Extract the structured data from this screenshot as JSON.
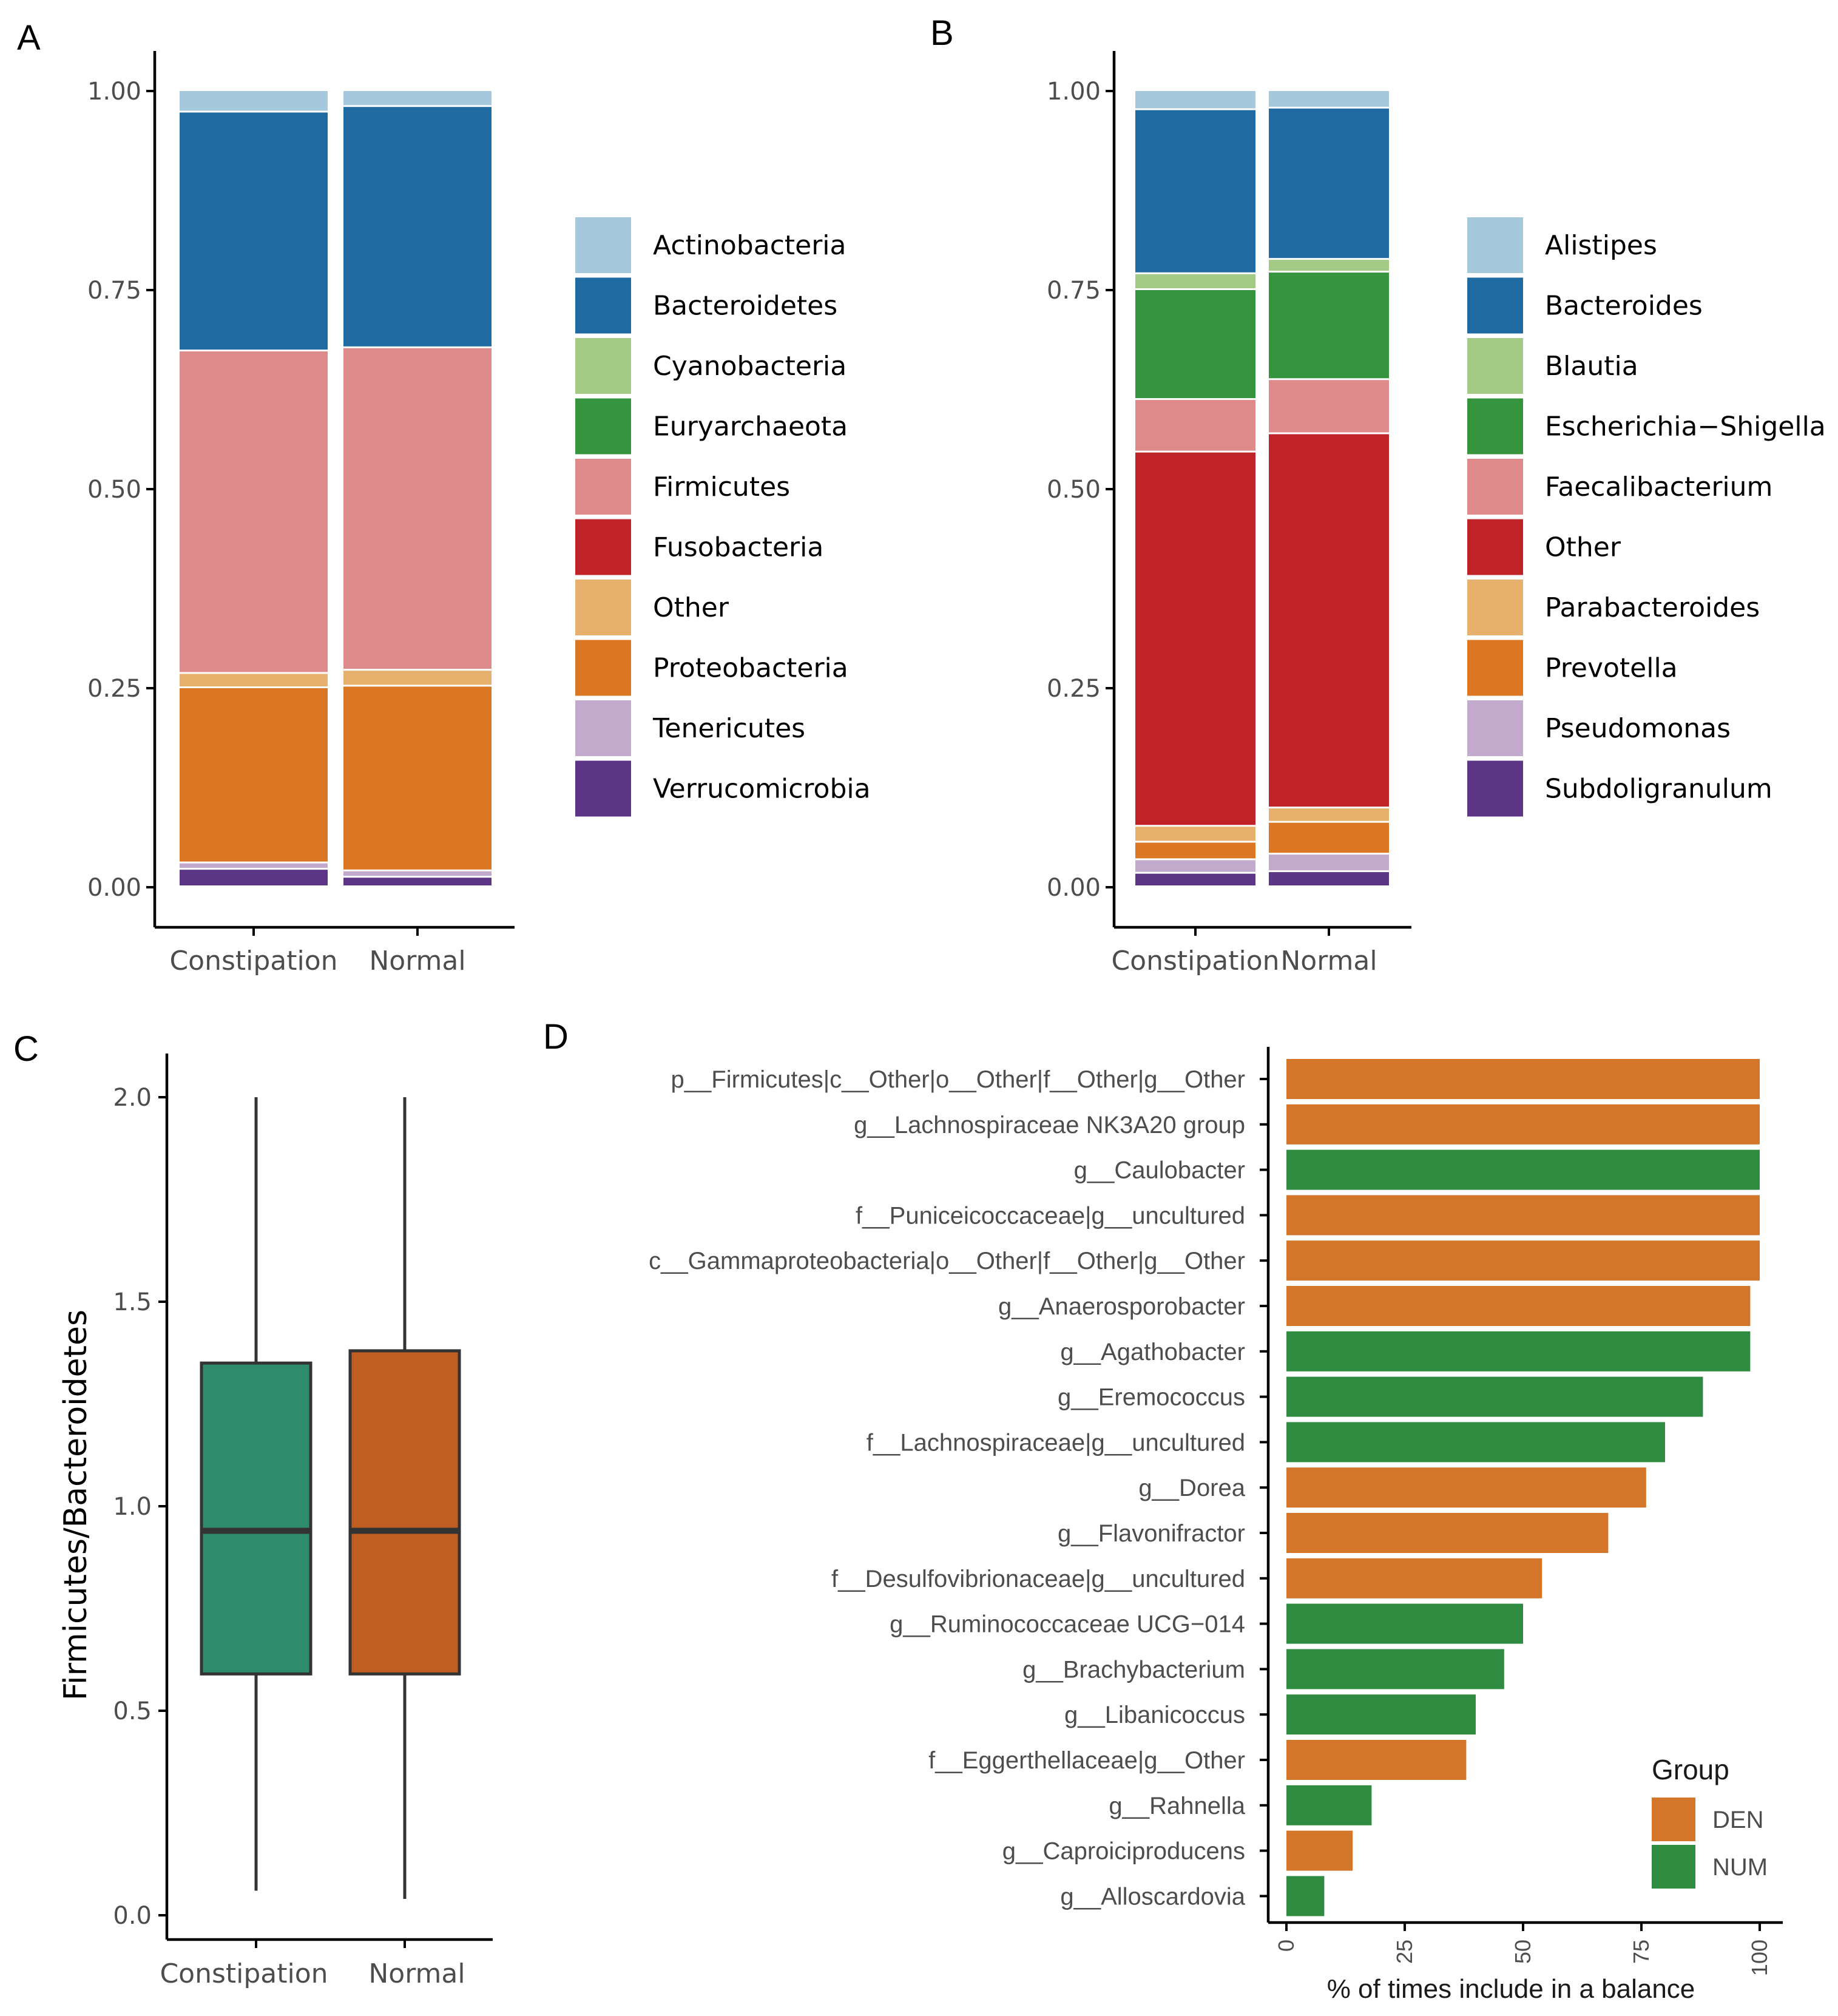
{
  "colors": {
    "Actinobacteria": "#a6c8dc",
    "Bacteroidetes": "#1f6aa0",
    "Cyanobacteria": "#a3cb86",
    "Euryarchaeota": "#36943f",
    "Firmicutes": "#df8a8a",
    "Fusobacteria": "#bf2327",
    "Other": "#e8b06d",
    "Proteobacteria": "#db7623",
    "Tenericutes": "#c2aacc",
    "Verrucomicrobia": "#5c3587",
    "Alistipes": "#a6c8dc",
    "Bacteroides": "#1f6aa0",
    "Blautia": "#a3cb86",
    "Escherichia-Shigella": "#36943f",
    "Faecalibacterium": "#df8a8a",
    "OtherB": "#bf2327",
    "Parabacteroides": "#e8b06d",
    "Prevotella": "#db7623",
    "Pseudomonas": "#c2aacc",
    "Subdoligranulum": "#5c3587",
    "box_constipation": "#2e8b6b",
    "box_normal": "#c05e22",
    "DEN": "#d4762a",
    "NUM": "#2f8b3f"
  },
  "chart_data": [
    {
      "panel": "A",
      "type": "bar",
      "stacked": true,
      "categories": [
        "Constipation",
        "Normal"
      ],
      "ylim": [
        0,
        1
      ],
      "yticks": [
        "0.00",
        "0.25",
        "0.50",
        "0.75",
        "1.00"
      ],
      "xlabel": "",
      "ylabel": "",
      "legend_position": "right",
      "series": [
        {
          "name": "Verrucomicrobia",
          "key": "Verrucomicrobia",
          "values": [
            0.022,
            0.012
          ]
        },
        {
          "name": "Tenericutes",
          "key": "Tenericutes",
          "values": [
            0.008,
            0.008
          ]
        },
        {
          "name": "Proteobacteria",
          "key": "Proteobacteria",
          "values": [
            0.22,
            0.232
          ]
        },
        {
          "name": "Other",
          "key": "Other",
          "values": [
            0.018,
            0.02
          ]
        },
        {
          "name": "Fusobacteria",
          "key": "Fusobacteria",
          "values": [
            0.0,
            0.0
          ]
        },
        {
          "name": "Firmicutes",
          "key": "Firmicutes",
          "values": [
            0.405,
            0.405
          ]
        },
        {
          "name": "Euryarchaeota",
          "key": "Euryarchaeota",
          "values": [
            0.0,
            0.0
          ]
        },
        {
          "name": "Cyanobacteria",
          "key": "Cyanobacteria",
          "values": [
            0.0,
            0.0
          ]
        },
        {
          "name": "Bacteroidetes",
          "key": "Bacteroidetes",
          "values": [
            0.3,
            0.303
          ]
        },
        {
          "name": "Actinobacteria",
          "key": "Actinobacteria",
          "values": [
            0.027,
            0.02
          ]
        }
      ],
      "legend": [
        "Actinobacteria",
        "Bacteroidetes",
        "Cyanobacteria",
        "Euryarchaeota",
        "Firmicutes",
        "Fusobacteria",
        "Other",
        "Proteobacteria",
        "Tenericutes",
        "Verrucomicrobia"
      ],
      "legend_keys": [
        "Actinobacteria",
        "Bacteroidetes",
        "Cyanobacteria",
        "Euryarchaeota",
        "Firmicutes",
        "Fusobacteria",
        "Other",
        "Proteobacteria",
        "Tenericutes",
        "Verrucomicrobia"
      ]
    },
    {
      "panel": "B",
      "type": "bar",
      "stacked": true,
      "categories": [
        "Constipation",
        "Normal"
      ],
      "ylim": [
        0,
        1
      ],
      "yticks": [
        "0.00",
        "0.25",
        "0.50",
        "0.75",
        "1.00"
      ],
      "xlabel": "",
      "ylabel": "",
      "legend_position": "right",
      "series": [
        {
          "name": "Subdoligranulum",
          "key": "Subdoligranulum",
          "values": [
            0.017,
            0.019
          ]
        },
        {
          "name": "Pseudomonas",
          "key": "Pseudomonas",
          "values": [
            0.017,
            0.022
          ]
        },
        {
          "name": "Prevotella",
          "key": "Prevotella",
          "values": [
            0.022,
            0.04
          ]
        },
        {
          "name": "Parabacteroides",
          "key": "Parabacteroides",
          "values": [
            0.02,
            0.018
          ]
        },
        {
          "name": "Other",
          "key": "OtherB",
          "values": [
            0.47,
            0.47
          ]
        },
        {
          "name": "Faecalibacterium",
          "key": "Faecalibacterium",
          "values": [
            0.066,
            0.068
          ]
        },
        {
          "name": "Escherichia-Shigella",
          "key": "Escherichia-Shigella",
          "values": [
            0.138,
            0.135
          ]
        },
        {
          "name": "Blautia",
          "key": "Blautia",
          "values": [
            0.02,
            0.016
          ]
        },
        {
          "name": "Bacteroides",
          "key": "Bacteroides",
          "values": [
            0.206,
            0.19
          ]
        },
        {
          "name": "Alistipes",
          "key": "Alistipes",
          "values": [
            0.024,
            0.022
          ]
        }
      ],
      "legend": [
        "Alistipes",
        "Bacteroides",
        "Blautia",
        "Escherichia−Shigella",
        "Faecalibacterium",
        "Other",
        "Parabacteroides",
        "Prevotella",
        "Pseudomonas",
        "Subdoligranulum"
      ],
      "legend_keys": [
        "Alistipes",
        "Bacteroides",
        "Blautia",
        "Escherichia-Shigella",
        "Faecalibacterium",
        "OtherB",
        "Parabacteroides",
        "Prevotella",
        "Pseudomonas",
        "Subdoligranulum"
      ]
    },
    {
      "panel": "C",
      "type": "box",
      "categories": [
        "Constipation",
        "Normal"
      ],
      "ylabel": "Firmicutes/Bacteroidetes",
      "xlabel": "",
      "ylim": [
        0,
        2.05
      ],
      "yticks": [
        "0.0",
        "0.5",
        "1.0",
        "1.5",
        "2.0"
      ],
      "boxes": [
        {
          "name": "Constipation",
          "min": 0.06,
          "q1": 0.59,
          "median": 0.94,
          "q3": 1.35,
          "max": 2.0
        },
        {
          "name": "Normal",
          "min": 0.04,
          "q1": 0.59,
          "median": 0.94,
          "q3": 1.38,
          "max": 2.0
        }
      ]
    },
    {
      "panel": "D",
      "type": "bar",
      "orientation": "horizontal",
      "xlabel": "% of times include in a balance",
      "xlim": [
        0,
        100
      ],
      "xticks": [
        "0",
        "25",
        "50",
        "75",
        "100"
      ],
      "legend_title": "Group",
      "legend": [
        "DEN",
        "NUM"
      ],
      "legend_position": "bottom-right",
      "categories": [
        "p__Firmicutes|c__Other|o__Other|f__Other|g__Other",
        "g__Lachnospiraceae NK3A20 group",
        "g__Caulobacter",
        "f__Puniceicoccaceae|g__uncultured",
        "c__Gammaproteobacteria|o__Other|f__Other|g__Other",
        "g__Anaerosporobacter",
        "g__Agathobacter",
        "g__Eremococcus",
        "f__Lachnospiraceae|g__uncultured",
        "g__Dorea",
        "g__Flavonifractor",
        "f__Desulfovibrionaceae|g__uncultured",
        "g__Ruminococcaceae UCG−014",
        "g__Brachybacterium",
        "g__Libanicoccus",
        "f__Eggerthellaceae|g__Other",
        "g__Rahnella",
        "g__Caproiciproducens",
        "g__Alloscardovia"
      ],
      "values": [
        100,
        100,
        100,
        100,
        100,
        98,
        98,
        88,
        80,
        76,
        68,
        54,
        50,
        46,
        40,
        38,
        18,
        14,
        8
      ],
      "groups": [
        "DEN",
        "DEN",
        "NUM",
        "DEN",
        "DEN",
        "DEN",
        "NUM",
        "NUM",
        "NUM",
        "DEN",
        "DEN",
        "DEN",
        "NUM",
        "NUM",
        "NUM",
        "DEN",
        "NUM",
        "DEN",
        "NUM"
      ]
    }
  ],
  "panel_labels": {
    "A": "A",
    "B": "B",
    "C": "C",
    "D": "D"
  }
}
